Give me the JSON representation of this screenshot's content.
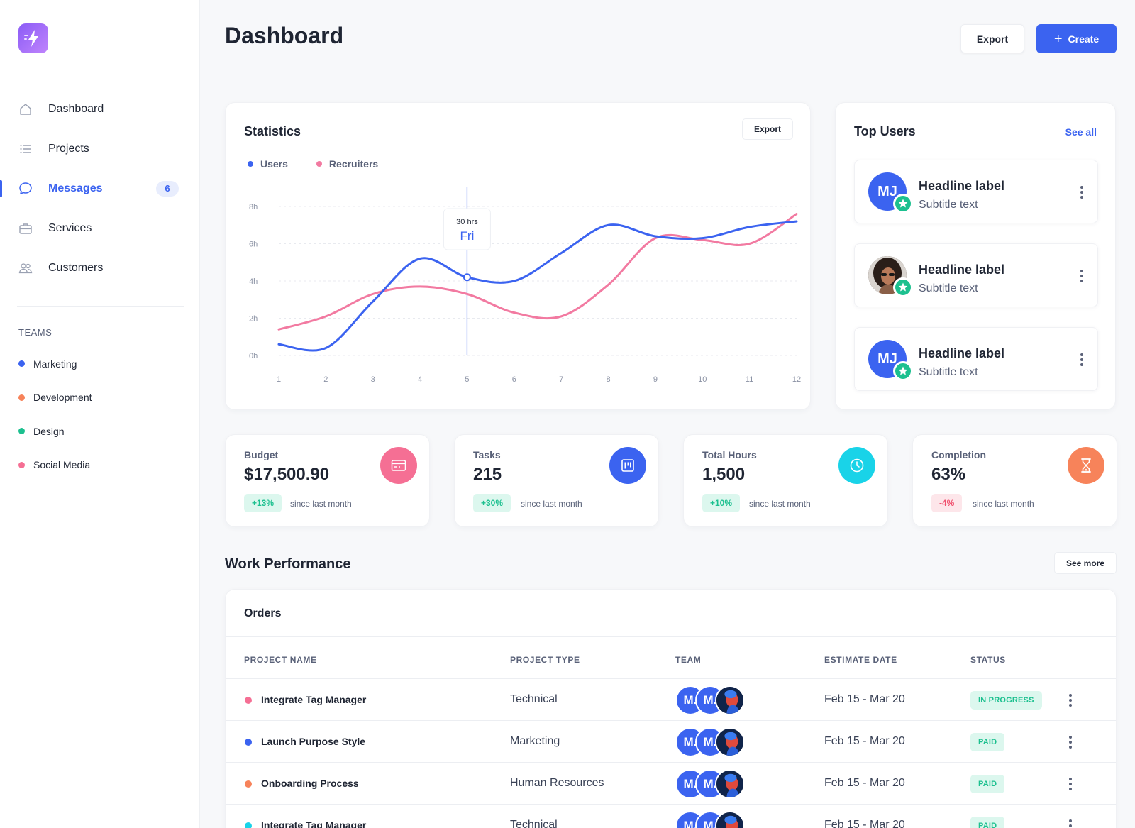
{
  "sidebar": {
    "nav": [
      {
        "label": "Dashboard",
        "icon": "home-icon"
      },
      {
        "label": "Projects",
        "icon": "list-icon"
      },
      {
        "label": "Messages",
        "icon": "chat-icon",
        "badge": "6",
        "active": true
      },
      {
        "label": "Services",
        "icon": "briefcase-icon"
      },
      {
        "label": "Customers",
        "icon": "users-icon"
      }
    ],
    "teams_title": "TEAMS",
    "teams": [
      {
        "label": "Marketing",
        "color": "#3b63f0"
      },
      {
        "label": "Development",
        "color": "#f7835a"
      },
      {
        "label": "Design",
        "color": "#1cc08f"
      },
      {
        "label": "Social Media",
        "color": "#f56f94"
      }
    ]
  },
  "header": {
    "title": "Dashboard",
    "export_label": "Export",
    "create_label": "Create"
  },
  "statistics": {
    "title": "Statistics",
    "export_label": "Export",
    "legend": [
      {
        "label": "Users",
        "color": "#3b63f0"
      },
      {
        "label": "Recruiters",
        "color": "#f27aa1"
      }
    ],
    "tooltip": {
      "value": "30 hrs",
      "day": "Fri"
    }
  },
  "chart_data": {
    "type": "line",
    "x": [
      1,
      2,
      3,
      4,
      5,
      6,
      7,
      8,
      9,
      10,
      11,
      12
    ],
    "yticks": [
      "0h",
      "2h",
      "4h",
      "6h",
      "8h"
    ],
    "ylim": [
      0,
      8
    ],
    "series": [
      {
        "name": "Users",
        "color": "#3b63f0",
        "values": [
          0.6,
          0.4,
          2.9,
          5.2,
          4.2,
          4.0,
          5.5,
          7.0,
          6.4,
          6.3,
          6.9,
          7.2
        ]
      },
      {
        "name": "Recruiters",
        "color": "#f27aa1",
        "values": [
          1.4,
          2.1,
          3.3,
          3.7,
          3.3,
          2.3,
          2.1,
          3.8,
          6.3,
          6.2,
          6.0,
          7.6
        ]
      }
    ],
    "highlight_x": 5
  },
  "top_users": {
    "title": "Top Users",
    "see_all": "See all",
    "items": [
      {
        "initials": "MJ",
        "name": "Headline label",
        "subtitle": "Subtitle text",
        "photo": false
      },
      {
        "initials": "",
        "name": "Headline label",
        "subtitle": "Subtitle text",
        "photo": true
      },
      {
        "initials": "MJ",
        "name": "Headline label",
        "subtitle": "Subtitle text",
        "photo": false
      }
    ]
  },
  "kpis": [
    {
      "label": "Budget",
      "value": "$17,500.90",
      "change": "+13%",
      "trend": "up",
      "since": "since last month",
      "icon": "card-icon",
      "color": "#f56f94"
    },
    {
      "label": "Tasks",
      "value": "215",
      "change": "+30%",
      "trend": "up",
      "since": "since last month",
      "icon": "kanban-icon",
      "color": "#3b63f0"
    },
    {
      "label": "Total Hours",
      "value": "1,500",
      "change": "+10%",
      "trend": "up",
      "since": "since last month",
      "icon": "clock-icon",
      "color": "#19d3e8"
    },
    {
      "label": "Completion",
      "value": "63%",
      "change": "-4%",
      "trend": "down",
      "since": "since last month",
      "icon": "hourglass-icon",
      "color": "#f7835a"
    }
  ],
  "work_performance": {
    "title": "Work Performance",
    "see_more": "See more",
    "orders": {
      "title": "Orders",
      "columns": [
        "PROJECT NAME",
        "PROJECT TYPE",
        "TEAM",
        "ESTIMATE DATE",
        "STATUS"
      ],
      "rows": [
        {
          "name": "Integrate Tag Manager",
          "type": "Technical",
          "date": "Feb 15 - Mar 20",
          "status": "IN PROGRESS",
          "color": "#f56f94"
        },
        {
          "name": "Launch Purpose Style",
          "type": "Marketing",
          "date": "Feb 15 - Mar 20",
          "status": "PAID",
          "color": "#3b63f0"
        },
        {
          "name": "Onboarding Process",
          "type": "Human Resources",
          "date": "Feb 15 - Mar 20",
          "status": "PAID",
          "color": "#f7835a"
        },
        {
          "name": "Integrate Tag Manager",
          "type": "Technical",
          "date": "Feb 15 - Mar 20",
          "status": "PAID",
          "color": "#19d3e8"
        }
      ],
      "team_initials": [
        "M.",
        "M."
      ]
    }
  }
}
